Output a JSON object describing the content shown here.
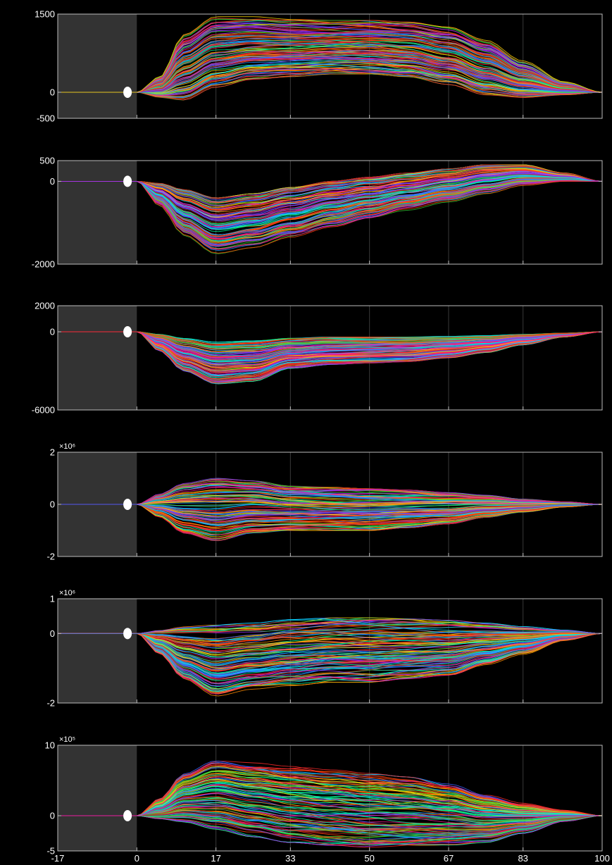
{
  "chart_data": [
    {
      "type": "line",
      "title": "",
      "xlabel": "",
      "ylabel": "",
      "xlim": [
        -17,
        100
      ],
      "ylim": [
        -500,
        1500
      ],
      "y_ticks": [
        1500,
        0,
        -500
      ],
      "y_tick_labels": [
        "1500",
        "0",
        "-500"
      ],
      "exponent_label": "",
      "shaded_x_range": [
        -17,
        0
      ],
      "marker": {
        "x": -2,
        "y": 0
      },
      "envelope": {
        "x": [
          0,
          5,
          10,
          17,
          25,
          33,
          42,
          50,
          58,
          67,
          75,
          83,
          92,
          100
        ],
        "upper": [
          0,
          300,
          1100,
          1450,
          1450,
          1400,
          1380,
          1380,
          1350,
          1250,
          1000,
          600,
          200,
          0
        ],
        "lower": [
          0,
          -100,
          -150,
          100,
          250,
          300,
          350,
          350,
          300,
          150,
          -50,
          -100,
          -50,
          0
        ]
      },
      "series_count": 120
    },
    {
      "type": "line",
      "title": "",
      "xlabel": "",
      "ylabel": "",
      "xlim": [
        -17,
        100
      ],
      "ylim": [
        -2000,
        500
      ],
      "y_ticks": [
        500,
        0,
        -2000
      ],
      "y_tick_labels": [
        "500",
        "0",
        "-2000"
      ],
      "exponent_label": "",
      "shaded_x_range": [
        -17,
        0
      ],
      "marker": {
        "x": -2,
        "y": 0
      },
      "envelope": {
        "x": [
          0,
          5,
          10,
          17,
          25,
          33,
          42,
          50,
          58,
          67,
          75,
          83,
          92,
          100
        ],
        "upper": [
          0,
          -50,
          -200,
          -400,
          -300,
          -150,
          0,
          100,
          200,
          300,
          400,
          400,
          200,
          0
        ],
        "lower": [
          0,
          -600,
          -1300,
          -1750,
          -1600,
          -1350,
          -1100,
          -900,
          -700,
          -500,
          -300,
          -100,
          0,
          0
        ]
      },
      "series_count": 120
    },
    {
      "type": "line",
      "title": "",
      "xlabel": "",
      "ylabel": "",
      "xlim": [
        -17,
        100
      ],
      "ylim": [
        -6000,
        2000
      ],
      "y_ticks": [
        2000,
        0,
        -6000
      ],
      "y_tick_labels": [
        "2000",
        "0",
        "-6000"
      ],
      "exponent_label": "",
      "shaded_x_range": [
        -17,
        0
      ],
      "marker": {
        "x": -2,
        "y": 0
      },
      "envelope": {
        "x": [
          0,
          5,
          10,
          17,
          25,
          33,
          42,
          50,
          58,
          67,
          75,
          83,
          92,
          100
        ],
        "upper": [
          0,
          -200,
          -500,
          -800,
          -700,
          -500,
          -400,
          -400,
          -400,
          -350,
          -300,
          -200,
          -100,
          0
        ],
        "lower": [
          0,
          -1500,
          -3000,
          -4000,
          -3800,
          -2800,
          -2500,
          -2400,
          -2300,
          -2000,
          -1600,
          -1000,
          -400,
          0
        ]
      },
      "series_count": 120
    },
    {
      "type": "line",
      "title": "",
      "xlabel": "",
      "ylabel": "",
      "xlim": [
        -17,
        100
      ],
      "ylim": [
        -2,
        2
      ],
      "y_ticks": [
        2,
        0,
        -2
      ],
      "y_tick_labels": [
        "2",
        "0",
        "-2"
      ],
      "exponent_label": "×10⁶",
      "shaded_x_range": [
        -17,
        0
      ],
      "marker": {
        "x": -2,
        "y": 0
      },
      "envelope": {
        "x": [
          0,
          5,
          10,
          17,
          25,
          33,
          42,
          50,
          58,
          67,
          75,
          83,
          92,
          100
        ],
        "upper": [
          0,
          0.4,
          0.8,
          1.0,
          0.9,
          0.7,
          0.65,
          0.6,
          0.55,
          0.45,
          0.35,
          0.2,
          0.1,
          0
        ],
        "lower": [
          0,
          -0.5,
          -1.1,
          -1.4,
          -1.1,
          -1.0,
          -1.0,
          -1.0,
          -0.9,
          -0.75,
          -0.5,
          -0.3,
          -0.1,
          0
        ]
      },
      "series_count": 120
    },
    {
      "type": "line",
      "title": "",
      "xlabel": "",
      "ylabel": "",
      "xlim": [
        -17,
        100
      ],
      "ylim": [
        -2,
        1
      ],
      "y_ticks": [
        1,
        0,
        -2
      ],
      "y_tick_labels": [
        "1",
        "0",
        "-2"
      ],
      "exponent_label": "×10⁶",
      "shaded_x_range": [
        -17,
        0
      ],
      "marker": {
        "x": -2,
        "y": 0
      },
      "envelope": {
        "x": [
          0,
          5,
          10,
          17,
          25,
          33,
          42,
          50,
          58,
          67,
          75,
          83,
          92,
          100
        ],
        "upper": [
          0,
          0.1,
          0.2,
          0.25,
          0.3,
          0.4,
          0.45,
          0.45,
          0.42,
          0.38,
          0.3,
          0.2,
          0.1,
          0
        ],
        "lower": [
          0,
          -0.6,
          -1.3,
          -1.8,
          -1.6,
          -1.5,
          -1.4,
          -1.4,
          -1.3,
          -1.2,
          -0.9,
          -0.6,
          -0.2,
          0
        ]
      },
      "series_count": 120
    },
    {
      "type": "line",
      "title": "",
      "xlabel": "",
      "ylabel": "",
      "xlim": [
        -17,
        100
      ],
      "ylim": [
        -5,
        10
      ],
      "y_ticks": [
        10,
        0,
        -5
      ],
      "y_tick_labels": [
        "10",
        "0",
        "-5"
      ],
      "exponent_label": "×10⁵",
      "shaded_x_range": [
        -17,
        0
      ],
      "marker": {
        "x": -2,
        "y": 0
      },
      "envelope": {
        "x": [
          0,
          5,
          10,
          17,
          25,
          33,
          42,
          50,
          58,
          67,
          75,
          83,
          92,
          100
        ],
        "upper": [
          0,
          2.5,
          6.0,
          8.0,
          7.5,
          7.0,
          6.5,
          6.0,
          5.5,
          4.5,
          3.0,
          1.8,
          0.8,
          0
        ],
        "lower": [
          0,
          -0.5,
          -1.0,
          -2.0,
          -3.0,
          -3.8,
          -4.2,
          -4.5,
          -4.5,
          -4.3,
          -3.8,
          -2.5,
          -0.8,
          0
        ]
      },
      "series_count": 120
    }
  ],
  "x_axis": {
    "ticks": [
      -17,
      0,
      17,
      33,
      50,
      67,
      83,
      100
    ],
    "tick_labels": [
      "-17",
      "0",
      "17",
      "33",
      "50",
      "67",
      "83",
      "100"
    ]
  },
  "colors": {
    "background": "#000000",
    "shade": "#333333",
    "frame": "#bdbdbd",
    "grid": "#3a3a3a",
    "marker": "#ffffff",
    "series_palette": [
      "#ff2a2a",
      "#ff8c00",
      "#ffd700",
      "#32cd32",
      "#00e5ff",
      "#1e90ff",
      "#3a5fff",
      "#9b30ff",
      "#ff1493",
      "#b22222",
      "#ff4500",
      "#00fa9a"
    ]
  }
}
